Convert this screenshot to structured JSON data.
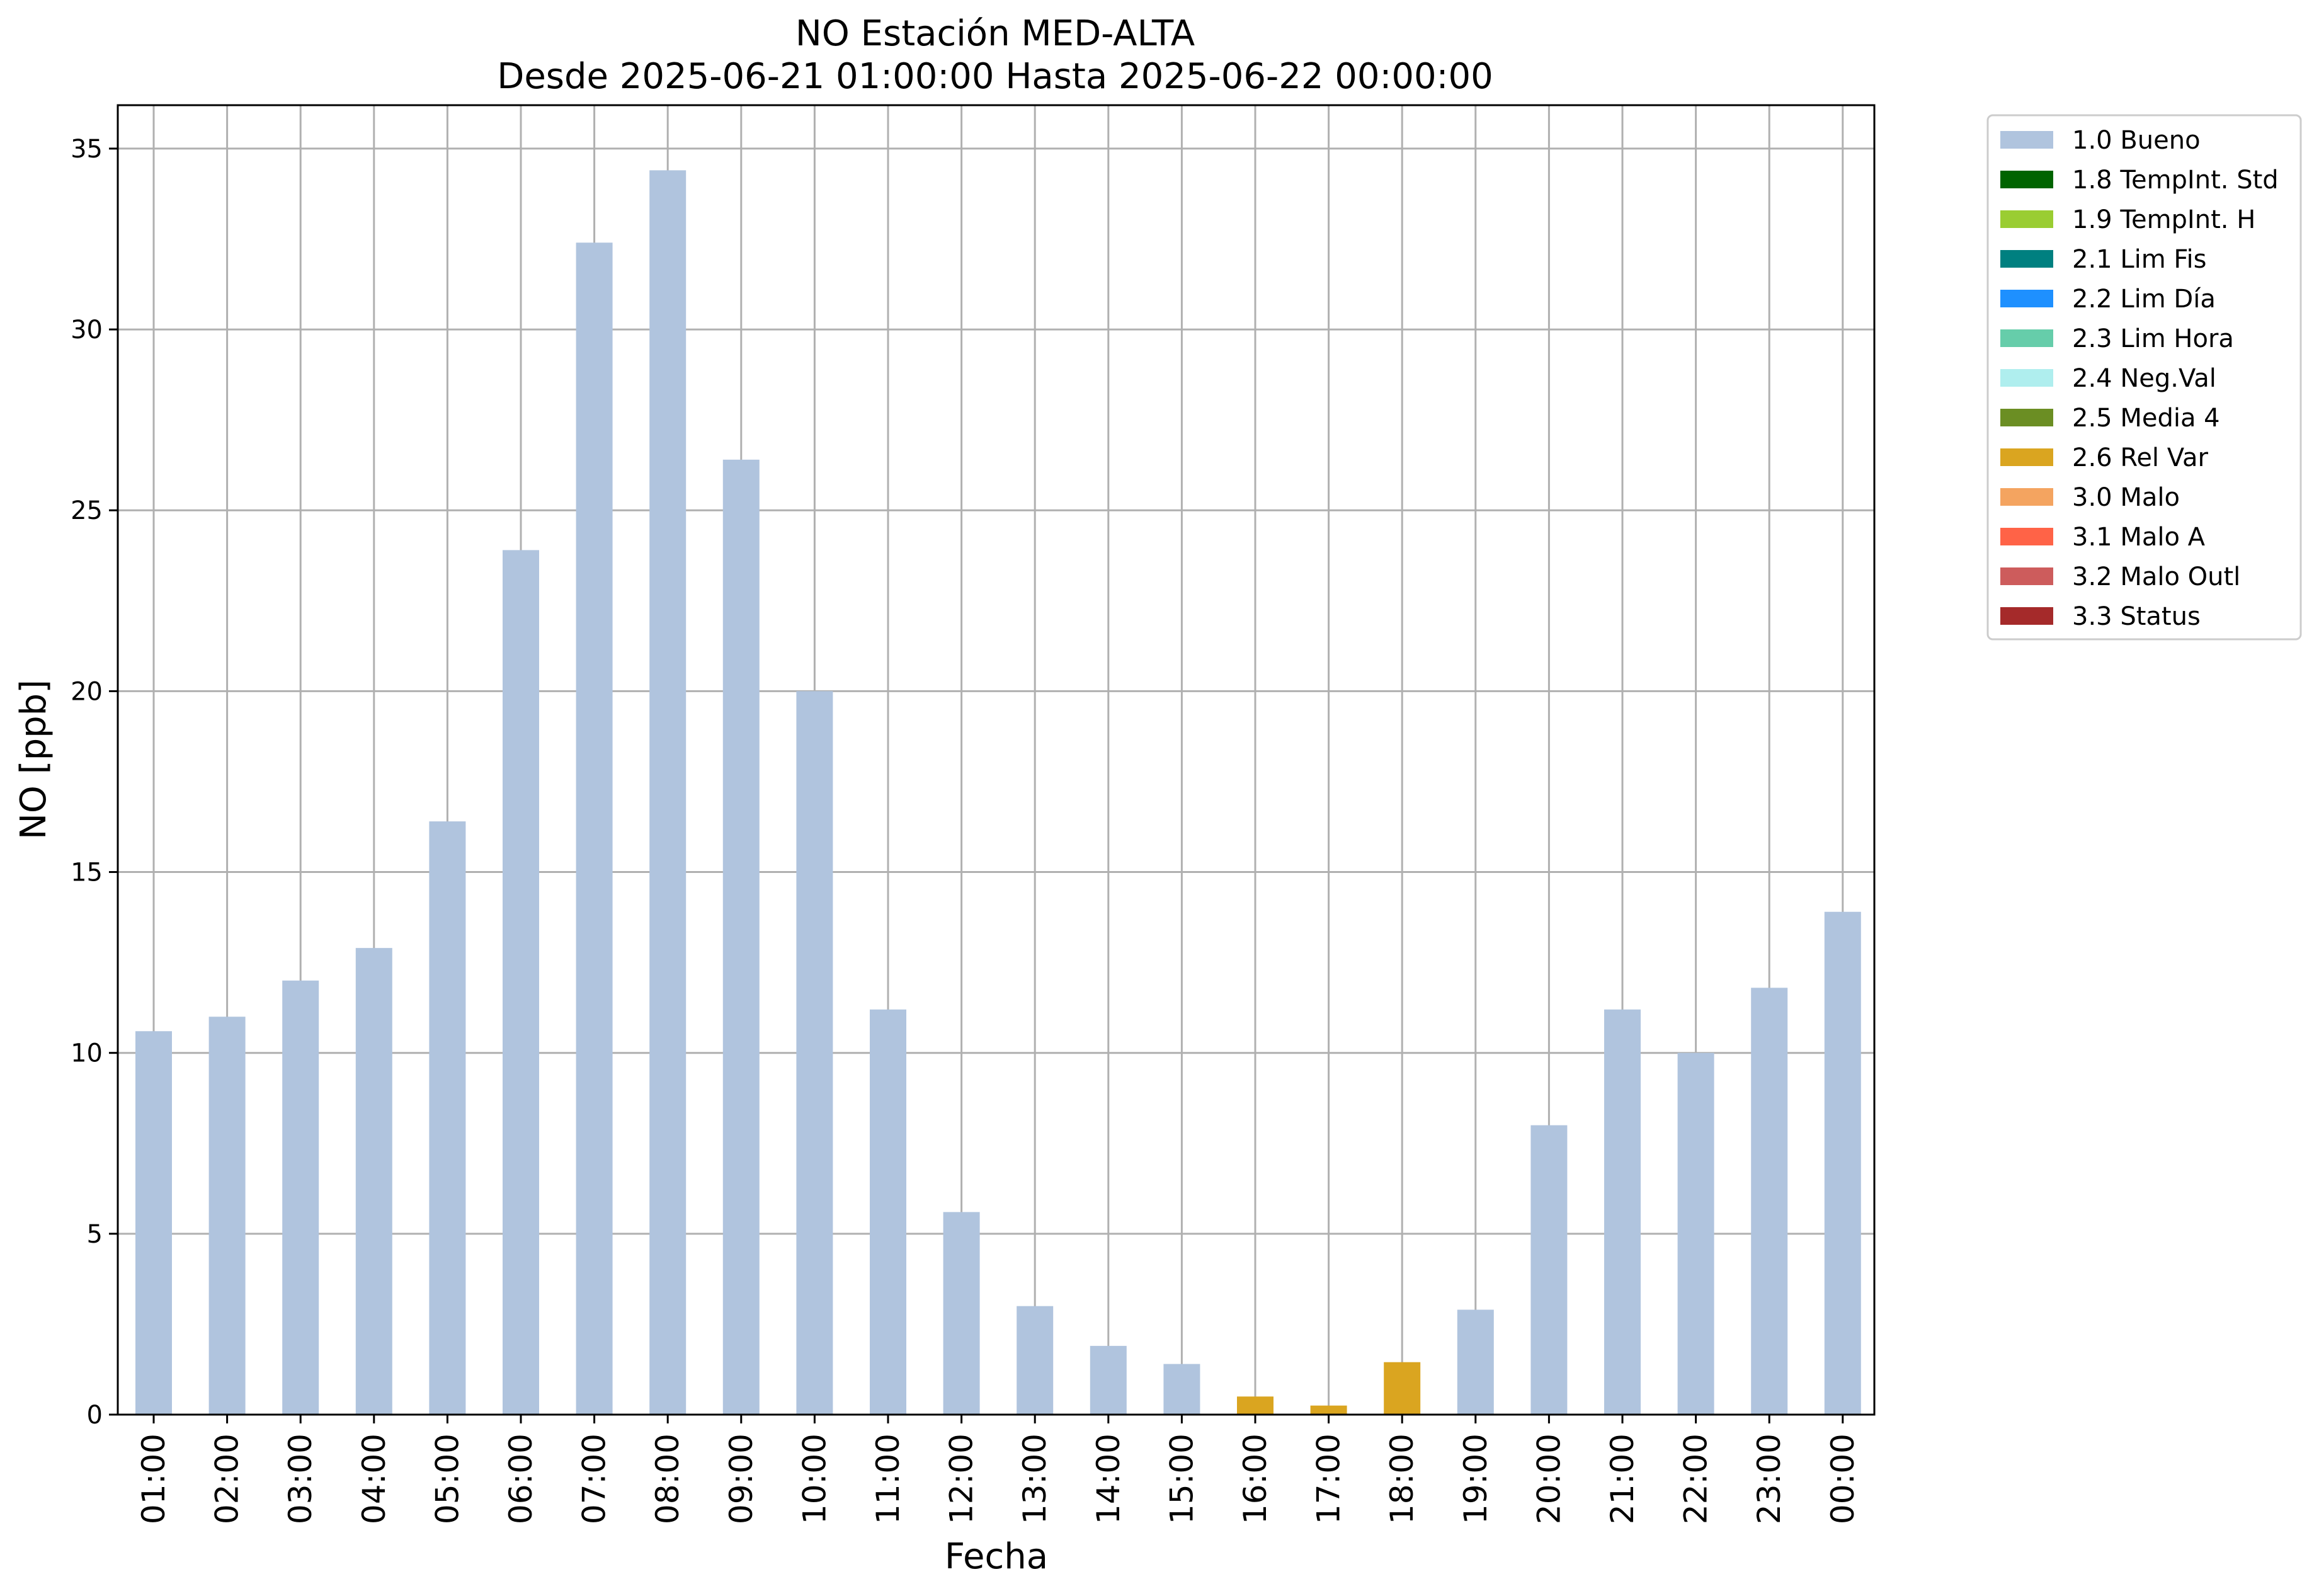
{
  "chart_data": {
    "type": "bar",
    "title": "NO Estación MED-ALTA",
    "subtitle": "Desde 2025-06-21 01:00:00 Hasta 2025-06-22 00:00:00",
    "xlabel": "Fecha",
    "ylabel": "NO [ppb]",
    "ylim": [
      0,
      36.2
    ],
    "yticks": [
      0,
      5,
      10,
      15,
      20,
      25,
      30,
      35
    ],
    "grid": true,
    "stacked": true,
    "legend_position": "outside-right-top",
    "categories": [
      "01:00",
      "02:00",
      "03:00",
      "04:00",
      "05:00",
      "06:00",
      "07:00",
      "08:00",
      "09:00",
      "10:00",
      "11:00",
      "12:00",
      "13:00",
      "14:00",
      "15:00",
      "16:00",
      "17:00",
      "18:00",
      "19:00",
      "20:00",
      "21:00",
      "22:00",
      "23:00",
      "00:00"
    ],
    "series": [
      {
        "name": "1.0 Bueno",
        "color": "#b0c4de",
        "values": [
          10.6,
          11.0,
          12.0,
          12.9,
          16.4,
          23.9,
          32.4,
          34.4,
          26.4,
          20.0,
          11.2,
          5.6,
          3.0,
          1.9,
          1.4,
          0,
          0,
          0,
          2.9,
          8.0,
          11.2,
          10.0,
          11.8,
          13.9
        ]
      },
      {
        "name": "1.8 TempInt. Std",
        "color": "#006400",
        "values": [
          0,
          0,
          0,
          0,
          0,
          0,
          0,
          0,
          0,
          0,
          0,
          0,
          0,
          0,
          0,
          0,
          0,
          0,
          0,
          0,
          0,
          0,
          0,
          0
        ]
      },
      {
        "name": "1.9 TempInt. H",
        "color": "#9acd32",
        "values": [
          0,
          0,
          0,
          0,
          0,
          0,
          0,
          0,
          0,
          0,
          0,
          0,
          0,
          0,
          0,
          0,
          0,
          0,
          0,
          0,
          0,
          0,
          0,
          0
        ]
      },
      {
        "name": "2.1 Lim Fis",
        "color": "#008080",
        "values": [
          0,
          0,
          0,
          0,
          0,
          0,
          0,
          0,
          0,
          0,
          0,
          0,
          0,
          0,
          0,
          0,
          0,
          0,
          0,
          0,
          0,
          0,
          0,
          0
        ]
      },
      {
        "name": "2.2 Lim Día",
        "color": "#1e90ff",
        "values": [
          0,
          0,
          0,
          0,
          0,
          0,
          0,
          0,
          0,
          0,
          0,
          0,
          0,
          0,
          0,
          0,
          0,
          0,
          0,
          0,
          0,
          0,
          0,
          0
        ]
      },
      {
        "name": "2.3 Lim Hora",
        "color": "#66cdaa",
        "values": [
          0,
          0,
          0,
          0,
          0,
          0,
          0,
          0,
          0,
          0,
          0,
          0,
          0,
          0,
          0,
          0,
          0,
          0,
          0,
          0,
          0,
          0,
          0,
          0
        ]
      },
      {
        "name": "2.4 Neg.Val",
        "color": "#afeeee",
        "values": [
          0,
          0,
          0,
          0,
          0,
          0,
          0,
          0,
          0,
          0,
          0,
          0,
          0,
          0,
          0,
          0,
          0,
          0,
          0,
          0,
          0,
          0,
          0,
          0
        ]
      },
      {
        "name": "2.5 Media 4",
        "color": "#6b8e23",
        "values": [
          0,
          0,
          0,
          0,
          0,
          0,
          0,
          0,
          0,
          0,
          0,
          0,
          0,
          0,
          0,
          0,
          0,
          0,
          0,
          0,
          0,
          0,
          0,
          0
        ]
      },
      {
        "name": "2.6 Rel Var",
        "color": "#daa520",
        "values": [
          0,
          0,
          0,
          0,
          0,
          0,
          0,
          0,
          0,
          0,
          0,
          0,
          0,
          0,
          0,
          0.5,
          0.25,
          1.45,
          0,
          0,
          0,
          0,
          0,
          0
        ]
      },
      {
        "name": "3.0 Malo",
        "color": "#f4a460",
        "values": [
          0,
          0,
          0,
          0,
          0,
          0,
          0,
          0,
          0,
          0,
          0,
          0,
          0,
          0,
          0,
          0,
          0,
          0,
          0,
          0,
          0,
          0,
          0,
          0
        ]
      },
      {
        "name": "3.1 Malo A",
        "color": "#ff6347",
        "values": [
          0,
          0,
          0,
          0,
          0,
          0,
          0,
          0,
          0,
          0,
          0,
          0,
          0,
          0,
          0,
          0,
          0,
          0,
          0,
          0,
          0,
          0,
          0,
          0
        ]
      },
      {
        "name": "3.2 Malo Outl",
        "color": "#cd5c5c",
        "values": [
          0,
          0,
          0,
          0,
          0,
          0,
          0,
          0,
          0,
          0,
          0,
          0,
          0,
          0,
          0,
          0,
          0,
          0,
          0,
          0,
          0,
          0,
          0,
          0
        ]
      },
      {
        "name": "3.3 Status",
        "color": "#a52a2a",
        "values": [
          0,
          0,
          0,
          0,
          0,
          0,
          0,
          0,
          0,
          0,
          0,
          0,
          0,
          0,
          0,
          0,
          0,
          0,
          0,
          0,
          0,
          0,
          0,
          0
        ]
      }
    ]
  }
}
